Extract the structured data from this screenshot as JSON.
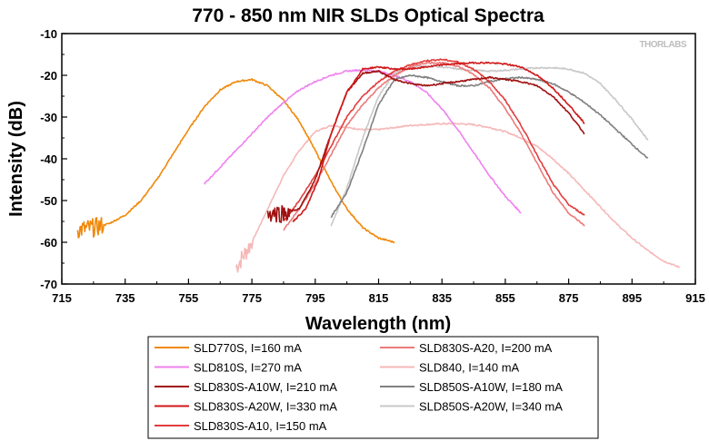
{
  "chart_data": {
    "type": "line",
    "title": "770 - 850 nm NIR SLDs Optical Spectra",
    "xlabel": "Wavelength (nm)",
    "ylabel": "Intensity (dB)",
    "xlim": [
      715,
      915
    ],
    "ylim": [
      -70,
      -10
    ],
    "xticks": [
      715,
      735,
      755,
      775,
      795,
      815,
      835,
      855,
      875,
      895,
      915
    ],
    "yticks": [
      -10,
      -20,
      -30,
      -40,
      -50,
      -60,
      -70
    ],
    "grid": false,
    "watermark": "THORLABS",
    "legend_position": "bottom",
    "series": [
      {
        "name": "SLD770S, I=160 mA",
        "color": "#f0880a",
        "noisy_end": 728,
        "x": [
          720,
          725,
          730,
          735,
          740,
          745,
          750,
          755,
          760,
          765,
          770,
          775,
          780,
          785,
          790,
          795,
          800,
          805,
          810,
          815,
          820
        ],
        "y": [
          -57,
          -56.5,
          -55.5,
          -53.5,
          -50,
          -45,
          -39,
          -33,
          -27.5,
          -23.5,
          -21.5,
          -21,
          -22.5,
          -26,
          -31,
          -38,
          -45.5,
          -52,
          -56.5,
          -59,
          -60
        ]
      },
      {
        "name": "SLD810S, I=270 mA",
        "color": "#ee82ee",
        "x": [
          760,
          765,
          770,
          775,
          780,
          785,
          790,
          795,
          800,
          805,
          810,
          815,
          820,
          825,
          830,
          835,
          840,
          845,
          850,
          855,
          860
        ],
        "y": [
          -46,
          -42,
          -38,
          -34,
          -30,
          -26.5,
          -23.5,
          -21.5,
          -20,
          -19,
          -18.7,
          -19,
          -20,
          -21.5,
          -24,
          -28,
          -33,
          -38.5,
          -44,
          -49,
          -53
        ]
      },
      {
        "name": "SLD830S-A10W, I=210 mA",
        "color": "#a01010",
        "noisy_end": 787,
        "x": [
          780,
          785,
          790,
          795,
          800,
          805,
          810,
          815,
          820,
          825,
          830,
          835,
          840,
          845,
          850,
          855,
          860,
          865,
          870,
          875,
          880
        ],
        "y": [
          -53,
          -53,
          -52,
          -45,
          -34,
          -24,
          -19.5,
          -19,
          -21,
          -22,
          -22.5,
          -22,
          -21.5,
          -21,
          -20.5,
          -21,
          -21.5,
          -22.5,
          -25,
          -29,
          -34
        ]
      },
      {
        "name": "SLD830S-A20W, I=330 mA",
        "color": "#d01818",
        "x": [
          788,
          792,
          796,
          800,
          805,
          810,
          815,
          820,
          825,
          830,
          835,
          840,
          845,
          850,
          855,
          860,
          865,
          870,
          875,
          880
        ],
        "y": [
          -55,
          -52,
          -45,
          -34,
          -24,
          -18.5,
          -18,
          -18.5,
          -18.5,
          -18,
          -17.5,
          -17.2,
          -17,
          -17,
          -17.3,
          -18,
          -20,
          -23,
          -27,
          -31.5
        ]
      },
      {
        "name": "SLD830S-A10, I=150 mA",
        "color": "#e33c3c",
        "x": [
          785,
          790,
          795,
          800,
          805,
          810,
          815,
          820,
          825,
          830,
          835,
          840,
          845,
          850,
          855,
          860,
          865,
          870,
          875,
          880
        ],
        "y": [
          -55,
          -50,
          -44,
          -37,
          -30,
          -25,
          -21.5,
          -19,
          -17.5,
          -16.5,
          -16.2,
          -16.8,
          -18.5,
          -21.5,
          -26,
          -32,
          -39,
          -46,
          -51,
          -53.5
        ]
      },
      {
        "name": "SLD830S-A20, I=200 mA",
        "color": "#ec7a7a",
        "x": [
          785,
          790,
          795,
          800,
          805,
          810,
          815,
          820,
          825,
          830,
          835,
          840,
          845,
          850,
          855,
          860,
          865,
          870,
          875,
          880
        ],
        "y": [
          -57,
          -52,
          -46,
          -39,
          -32,
          -27,
          -23,
          -20,
          -18,
          -17,
          -17,
          -17.8,
          -19.8,
          -23,
          -28,
          -34,
          -41,
          -48,
          -53,
          -56
        ]
      },
      {
        "name": "SLD840, I=140 mA",
        "color": "#f5b8b8",
        "noisy_end": 775,
        "x": [
          770,
          775,
          780,
          785,
          790,
          795,
          800,
          805,
          810,
          815,
          820,
          825,
          830,
          835,
          840,
          845,
          850,
          855,
          860,
          865,
          870,
          875,
          880,
          885,
          890,
          895,
          900,
          905,
          910
        ],
        "y": [
          -66,
          -60,
          -52,
          -44,
          -38,
          -33.5,
          -32,
          -32.5,
          -33,
          -33,
          -32.5,
          -32,
          -31.8,
          -31.6,
          -31.6,
          -31.8,
          -32.5,
          -33.5,
          -35,
          -37,
          -40,
          -43.5,
          -47.5,
          -51.5,
          -55.5,
          -59,
          -62,
          -64.5,
          -66
        ]
      },
      {
        "name": "SLD850S-A10W, I=180 mA",
        "color": "#808080",
        "x": [
          800,
          805,
          810,
          815,
          820,
          825,
          830,
          835,
          840,
          845,
          850,
          855,
          860,
          865,
          870,
          875,
          880,
          885,
          890,
          895,
          900
        ],
        "y": [
          -54,
          -48,
          -38,
          -27,
          -21,
          -20,
          -20.5,
          -21.5,
          -22.5,
          -22.5,
          -21.5,
          -20.8,
          -20.5,
          -21,
          -22,
          -24,
          -26.5,
          -29.5,
          -33,
          -36.5,
          -40
        ]
      },
      {
        "name": "SLD850S-A20W, I=340 mA",
        "color": "#c8c8c8",
        "x": [
          800,
          805,
          810,
          815,
          820,
          825,
          830,
          835,
          840,
          845,
          850,
          855,
          860,
          865,
          870,
          875,
          880,
          885,
          890,
          895,
          900
        ],
        "y": [
          -56,
          -47,
          -35,
          -25,
          -19.5,
          -18,
          -17.8,
          -18,
          -18.5,
          -18.8,
          -19,
          -18.8,
          -18.5,
          -18.2,
          -18.2,
          -18.5,
          -19.5,
          -22,
          -26,
          -30.5,
          -35.5
        ]
      }
    ]
  }
}
